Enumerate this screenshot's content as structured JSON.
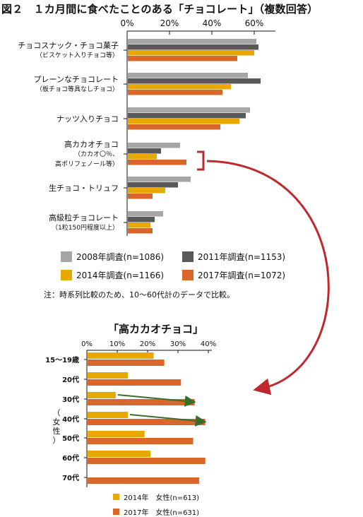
{
  "title": "図２　１カ月間に食べたことのある「チョコレート」（複数回答）",
  "note": "注：時系列比較のため、10～60代計のデータで比較。",
  "legend": [
    {
      "label": "2008年調査(n=1086)",
      "color": "#a6a6a6"
    },
    {
      "label": "2011年調査(n=1153)",
      "color": "#595959"
    },
    {
      "label": "2014年調査(n=1166)",
      "color": "#e8a800"
    },
    {
      "label": "2017年調査(n=1072)",
      "color": "#d9662b"
    }
  ],
  "sub_title": "「高カカオチョコ」",
  "vertical_label": [
    "（",
    "女",
    "性",
    "）"
  ],
  "sub_legend": [
    {
      "label": "2014年　女性(n=613)",
      "color": "#e8a800"
    },
    {
      "label": "2017年　女性(n=631)",
      "color": "#d9662b"
    }
  ],
  "chart_data": [
    {
      "type": "bar",
      "orientation": "horizontal",
      "categories": [
        [
          "チョコスナック・チョコ菓子",
          "（ビスケット入りチョコ等）"
        ],
        [
          "プレーンなチョコレート",
          "（板チョコ等具なしチョコ）"
        ],
        [
          "ナッツ入りチョコ"
        ],
        [
          "高カカオチョコ",
          "（カカオ〇％、",
          "高ポリフェノール等）"
        ],
        [
          "生チョコ・トリュフ"
        ],
        [
          "高級粒チョコレート",
          "（1粒150円程度以上）"
        ]
      ],
      "series": [
        {
          "name": "2008年調査(n=1086)",
          "values": [
            61,
            57,
            58,
            25,
            30,
            17
          ]
        },
        {
          "name": "2011年調査(n=1153)",
          "values": [
            62,
            63,
            56,
            16,
            24,
            13
          ]
        },
        {
          "name": "2014年調査(n=1166)",
          "values": [
            60,
            49,
            53,
            14,
            18,
            11
          ]
        },
        {
          "name": "2017年調査(n=1072)",
          "values": [
            52,
            45,
            44,
            28,
            12,
            12
          ]
        }
      ],
      "xticks": [
        "0%",
        "20%",
        "40%",
        "60%"
      ],
      "xlim": [
        0,
        70
      ],
      "highlight_category": 3
    },
    {
      "type": "bar",
      "orientation": "horizontal",
      "categories": [
        "15～19歳",
        "20代",
        "30代",
        "40代",
        "50代",
        "60代",
        "70代"
      ],
      "series": [
        {
          "name": "2014年　女性(n=613)",
          "values": [
            22,
            13.5,
            9.5,
            13.5,
            19,
            21,
            null
          ]
        },
        {
          "name": "2017年　女性(n=631)",
          "values": [
            25.5,
            31,
            35.5,
            39,
            35,
            39,
            37
          ]
        }
      ],
      "xticks": [
        "0%",
        "10%",
        "20%",
        "30%",
        "40%"
      ],
      "xlim": [
        0,
        40
      ],
      "trend_arrows": [
        {
          "category": "30代",
          "from": 9.5,
          "to": 35.5
        },
        {
          "category": "40代",
          "from": 13.5,
          "to": 39
        }
      ]
    }
  ]
}
